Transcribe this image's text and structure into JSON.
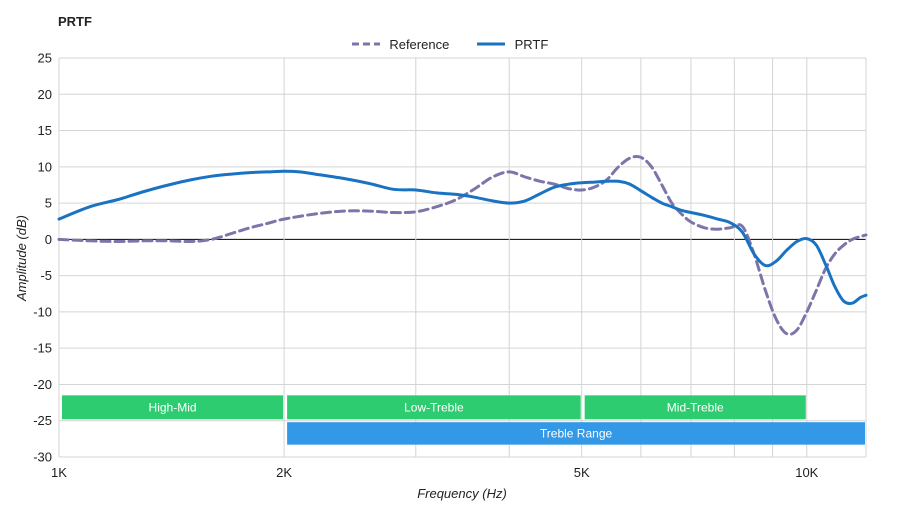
{
  "chart_data": {
    "type": "line",
    "title": "PRTF",
    "xlabel": "Frequency (Hz)",
    "ylabel": "Amplitude (dB)",
    "x_scale": "log",
    "xlim": [
      1000,
      12000
    ],
    "ylim": [
      -30,
      25
    ],
    "x_ticks": [
      {
        "value": 1000,
        "label": "1K"
      },
      {
        "value": 2000,
        "label": "2K"
      },
      {
        "value": 5000,
        "label": "5K"
      },
      {
        "value": 10000,
        "label": "10K"
      }
    ],
    "x_minor_gridlines": [
      3000,
      4000,
      6000,
      7000,
      8000,
      9000,
      12000
    ],
    "y_ticks": [
      25,
      20,
      15,
      10,
      5,
      0,
      -5,
      -10,
      -15,
      -20,
      -25,
      -30
    ],
    "grid": true,
    "legend_position": "top",
    "series": [
      {
        "name": "Reference",
        "style": "dashed",
        "color": "#7b76aa",
        "x": [
          1000,
          1100,
          1200,
          1300,
          1400,
          1500,
          1600,
          1700,
          1800,
          1900,
          2000,
          2200,
          2400,
          2600,
          2800,
          3000,
          3200,
          3400,
          3600,
          3800,
          4000,
          4200,
          4400,
          4600,
          4800,
          5000,
          5200,
          5400,
          5600,
          5800,
          6000,
          6200,
          6400,
          6600,
          6800,
          7000,
          7300,
          7600,
          7900,
          8200,
          8500,
          8800,
          9100,
          9400,
          9700,
          10000,
          10300,
          10600,
          10900,
          11200,
          11500,
          11800,
          12000
        ],
        "y": [
          0.0,
          -0.2,
          -0.3,
          -0.2,
          -0.2,
          -0.3,
          0.0,
          0.8,
          1.6,
          2.2,
          2.8,
          3.5,
          3.9,
          3.9,
          3.7,
          3.8,
          4.5,
          5.5,
          7.0,
          8.6,
          9.3,
          8.6,
          8.0,
          7.6,
          7.0,
          6.8,
          7.2,
          8.2,
          10.0,
          11.2,
          11.3,
          10.0,
          7.5,
          5.0,
          3.5,
          2.4,
          1.6,
          1.4,
          1.6,
          1.8,
          -2.0,
          -7.0,
          -11.0,
          -13.0,
          -12.5,
          -10.0,
          -7.0,
          -4.0,
          -2.0,
          -0.8,
          0.0,
          0.4,
          0.6
        ]
      },
      {
        "name": "PRTF",
        "style": "solid",
        "color": "#1a73c2",
        "x": [
          1000,
          1100,
          1200,
          1300,
          1400,
          1500,
          1600,
          1700,
          1800,
          1900,
          2000,
          2100,
          2200,
          2400,
          2600,
          2800,
          3000,
          3200,
          3400,
          3600,
          3800,
          4000,
          4200,
          4400,
          4600,
          4800,
          5000,
          5200,
          5400,
          5600,
          5800,
          6000,
          6200,
          6400,
          6600,
          6800,
          7000,
          7300,
          7600,
          7900,
          8200,
          8500,
          8800,
          9100,
          9400,
          9700,
          10000,
          10300,
          10600,
          10900,
          11200,
          11500,
          11800,
          12000
        ],
        "y": [
          2.8,
          4.5,
          5.5,
          6.6,
          7.5,
          8.2,
          8.7,
          9.0,
          9.2,
          9.3,
          9.4,
          9.3,
          9.0,
          8.4,
          7.7,
          6.9,
          6.8,
          6.4,
          6.2,
          5.8,
          5.3,
          5.0,
          5.3,
          6.3,
          7.2,
          7.6,
          7.8,
          7.9,
          8.0,
          8.0,
          7.6,
          6.7,
          5.8,
          5.0,
          4.5,
          4.0,
          3.7,
          3.3,
          2.8,
          2.3,
          1.0,
          -2.0,
          -3.6,
          -3.0,
          -1.5,
          -0.3,
          0.1,
          -0.8,
          -3.5,
          -6.5,
          -8.5,
          -8.8,
          -8.0,
          -7.7
        ]
      }
    ],
    "bands": [
      {
        "label": "High-Mid",
        "x_start": 1000,
        "x_end": 2000,
        "y_top": -21.5,
        "y_bottom": -24.8,
        "color": "#2ecc71"
      },
      {
        "label": "Low-Treble",
        "x_start": 2000,
        "x_end": 5000,
        "y_top": -21.5,
        "y_bottom": -24.8,
        "color": "#2ecc71"
      },
      {
        "label": "Mid-Treble",
        "x_start": 5000,
        "x_end": 10000,
        "y_top": -21.5,
        "y_bottom": -24.8,
        "color": "#2ecc71"
      },
      {
        "label": "Treble Range",
        "x_start": 2000,
        "x_end": 12000,
        "y_top": -25.2,
        "y_bottom": -28.3,
        "color": "#3399e6"
      }
    ]
  }
}
